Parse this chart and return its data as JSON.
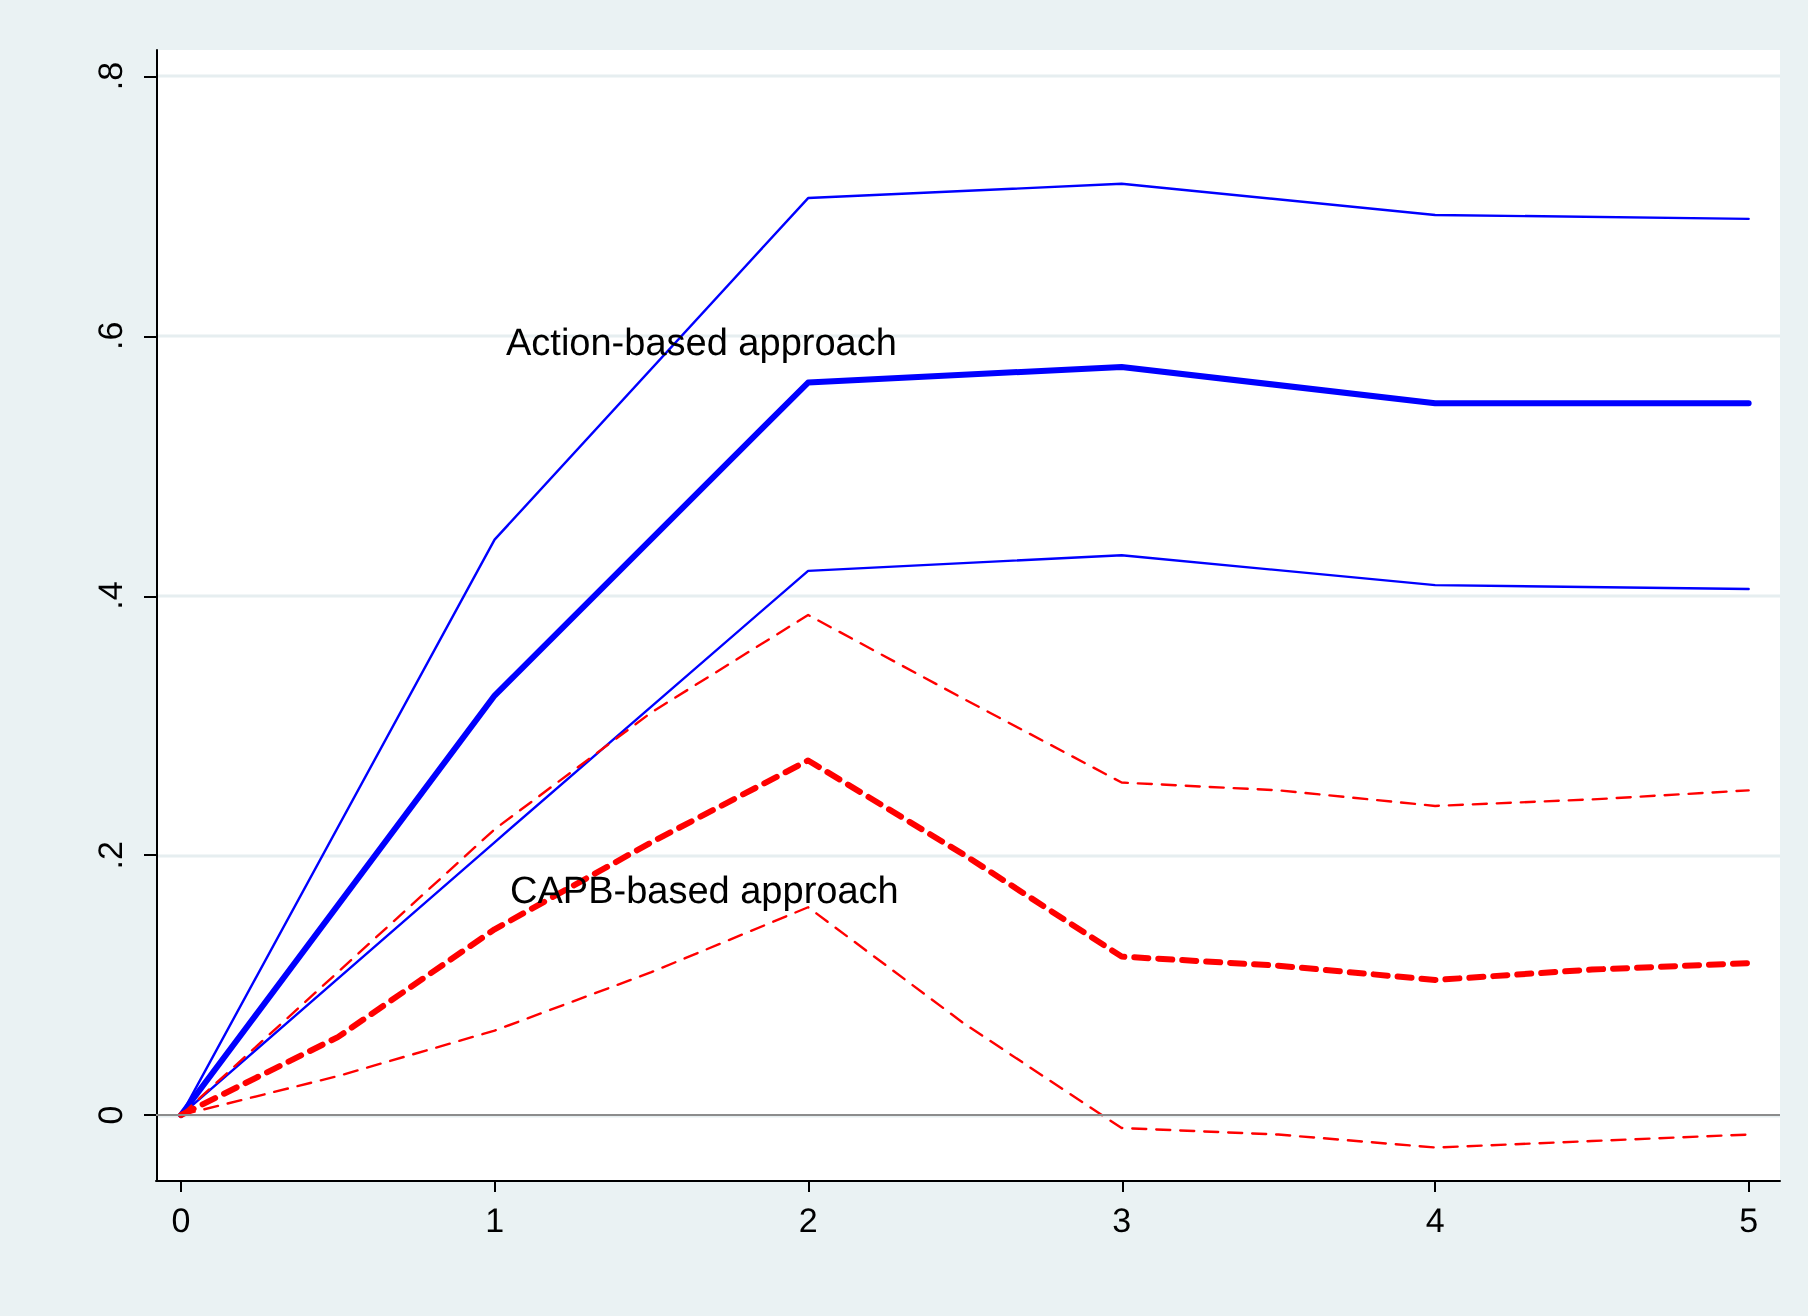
{
  "chart_data": {
    "type": "line",
    "series": [
      {
        "color": "#0000ff",
        "line_style": "solid",
        "x": [
          0,
          1,
          2,
          3,
          4,
          5
        ],
        "values": [
          0,
          0.443,
          0.706,
          0.717,
          0.693,
          0.69
        ]
      },
      {
        "color": "#0000ff",
        "line_style": "solid",
        "x": [
          0,
          1,
          2,
          3,
          4,
          5
        ],
        "values": [
          0,
          0.323,
          0.564,
          0.576,
          0.548,
          0.548
        ]
      },
      {
        "color": "#0000ff",
        "line_style": "solid",
        "x": [
          0,
          1,
          2,
          3,
          4,
          5
        ],
        "values": [
          0,
          0.21,
          0.419,
          0.431,
          0.408,
          0.405
        ]
      },
      {
        "color": "#ff0000",
        "line_style": "dashed",
        "x": [
          0,
          0.5,
          1,
          1.5,
          2,
          2.5,
          3,
          3.5,
          4,
          4.5,
          5
        ],
        "values": [
          0,
          0.11,
          0.22,
          0.31,
          0.385,
          0.32,
          0.256,
          0.25,
          0.238,
          0.243,
          0.25
        ]
      },
      {
        "color": "#ff0000",
        "line_style": "dashed",
        "x": [
          0,
          0.5,
          1,
          1.5,
          2,
          2.5,
          3,
          3.5,
          4,
          4.5,
          5
        ],
        "values": [
          0,
          0.06,
          0.143,
          0.21,
          0.273,
          0.2,
          0.122,
          0.115,
          0.104,
          0.112,
          0.117
        ]
      },
      {
        "color": "#ff0000",
        "line_style": "dashed",
        "x": [
          0,
          0.5,
          1,
          1.5,
          2,
          2.5,
          3,
          3.5,
          4,
          4.5,
          5
        ],
        "values": [
          0,
          0.03,
          0.065,
          0.11,
          0.16,
          0.07,
          -0.01,
          -0.015,
          -0.025,
          -0.02,
          -0.015
        ]
      }
    ],
    "xlim": [
      -0.08,
      5.1
    ],
    "xticks": [
      0,
      1,
      2,
      3,
      4,
      5
    ],
    "ylim": [
      -0.05,
      0.82
    ],
    "yticks": [
      0,
      {
        "value": 0.2,
        "label": ".2"
      },
      {
        "value": 0.4,
        "label": ".4"
      },
      {
        "value": 0.6,
        "label": ".6"
      },
      {
        "value": 0.8,
        "label": ".8"
      }
    ],
    "grid": "y",
    "marker": "none",
    "ref_lines": [
      {
        "axis": "y",
        "value": 0,
        "color": "#8c8c8c"
      }
    ],
    "annotations": [
      "Action-based approach",
      "CAPB-based approach"
    ]
  }
}
